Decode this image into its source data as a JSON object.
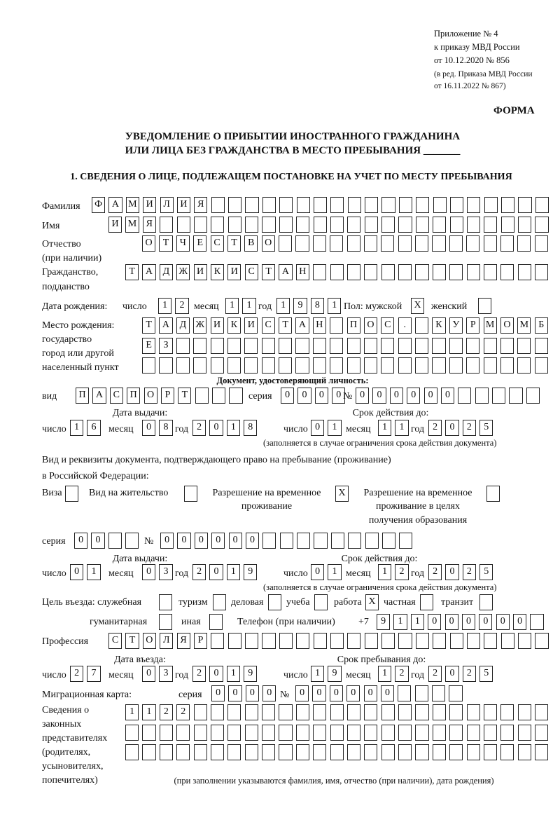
{
  "header": {
    "line1": "Приложение № 4",
    "line2": "к приказу МВД России",
    "line3": "от 10.12.2020 № 856",
    "line4": "(в ред. Приказа МВД России",
    "line5": "от 16.11.2022 № 867)",
    "form": "ФОРМА",
    "title1": "УВЕДОМЛЕНИЕ О ПРИБЫТИИ ИНОСТРАННОГО ГРАЖДАНИНА",
    "title2": "ИЛИ ЛИЦА БЕЗ ГРАЖДАНСТВА В МЕСТО ПРЕБЫВАНИЯ _______",
    "section1": "1. СВЕДЕНИЯ О ЛИЦЕ, ПОДЛЕЖАЩЕМ ПОСТАНОВКЕ НА УЧЕТ ПО МЕСТУ ПРЕБЫВАНИЯ"
  },
  "labels": {
    "surname": "Фамилия",
    "name": "Имя",
    "patronymic1": "Отчество",
    "patronymic2": "(при наличии)",
    "citizenship1": "Гражданство,",
    "citizenship2": "подданство",
    "birth_date": "Дата рождения:",
    "day": "число",
    "month": "месяц",
    "year": "год",
    "sex": "Пол: мужской",
    "female": "женский",
    "birthplace1": "Место рождения:",
    "birthplace2": "государство",
    "birthplace3": "город или другой",
    "birthplace4": "населенный пункт",
    "id_doc": "Документ, удостоверяющий личность:",
    "kind": "вид",
    "series": "серия",
    "number": "№",
    "issue_date": "Дата выдачи:",
    "valid_until": "Срок действия до:",
    "valid_note": "(заполняется в случае ограничения срока действия документа)",
    "right_doc1": "Вид и реквизиты документа, подтверждающего право на пребывание (проживание)",
    "right_doc2": "в Российской Федерации:",
    "visa": "Виза",
    "residence": "Вид на жительство",
    "trp1": "Разрешение на временное",
    "trp2": "проживание",
    "trp_edu1": "Разрешение на временное",
    "trp_edu2": "проживание в целях",
    "trp_edu3": "получения образования",
    "purpose": "Цель въезда: служебная",
    "tourism": "туризм",
    "business": "деловая",
    "study": "учеба",
    "work": "работа",
    "private": "частная",
    "transit": "транзит",
    "humanitarian": "гуманитарная",
    "other": "иная",
    "phone": "Телефон (при наличии)",
    "phone_prefix": "+7",
    "profession": "Профессия",
    "entry_date": "Дата въезда:",
    "stay_until": "Срок пребывания до:",
    "migration_card": "Миграционная карта:",
    "reps1": "Сведения о",
    "reps2": "законных",
    "reps3": "представителях",
    "reps4": "(родителях,",
    "reps5": "усыновителях,",
    "reps6": "попечителях)",
    "reps_note": "(при заполнении указываются фамилия, имя, отчество (при наличии), дата рождения)"
  },
  "person": {
    "surname": [
      "Ф",
      "А",
      "М",
      "И",
      "Л",
      "И",
      "Я",
      "",
      "",
      "",
      "",
      "",
      "",
      "",
      "",
      "",
      "",
      "",
      "",
      "",
      "",
      "",
      "",
      "",
      "",
      "",
      ""
    ],
    "name": [
      "И",
      "М",
      "Я",
      "",
      "",
      "",
      "",
      "",
      "",
      "",
      "",
      "",
      "",
      "",
      "",
      "",
      "",
      "",
      "",
      "",
      "",
      "",
      "",
      "",
      "",
      ""
    ],
    "patronymic": [
      "О",
      "Т",
      "Ч",
      "Е",
      "С",
      "Т",
      "В",
      "О",
      "",
      "",
      "",
      "",
      "",
      "",
      "",
      "",
      "",
      "",
      "",
      "",
      "",
      "",
      "",
      ""
    ],
    "citizenship": [
      "Т",
      "А",
      "Д",
      "Ж",
      "И",
      "К",
      "И",
      "С",
      "Т",
      "А",
      "Н",
      "",
      "",
      "",
      "",
      "",
      "",
      "",
      "",
      "",
      "",
      "",
      "",
      "",
      ""
    ],
    "birth_day": [
      "1",
      "2"
    ],
    "birth_month": [
      "1",
      "1"
    ],
    "birth_year": [
      "1",
      "9",
      "8",
      "1"
    ],
    "male": [
      "X"
    ],
    "female": [
      ""
    ],
    "birthplace1": [
      "Т",
      "А",
      "Д",
      "Ж",
      "И",
      "К",
      "И",
      "С",
      "Т",
      "А",
      "Н",
      "",
      "П",
      "О",
      "С",
      ".",
      "",
      "К",
      "У",
      "Р",
      "М",
      "О",
      "М",
      "Б"
    ],
    "birthplace2": [
      "Е",
      "З",
      "",
      "",
      "",
      "",
      "",
      "",
      "",
      "",
      "",
      "",
      "",
      "",
      "",
      "",
      "",
      "",
      "",
      "",
      "",
      "",
      "",
      ""
    ],
    "birthplace3": [
      "",
      "",
      "",
      "",
      "",
      "",
      "",
      "",
      "",
      "",
      "",
      "",
      "",
      "",
      "",
      "",
      "",
      "",
      "",
      "",
      "",
      "",
      "",
      ""
    ]
  },
  "id_doc": {
    "kind": [
      "П",
      "А",
      "С",
      "П",
      "О",
      "Р",
      "Т",
      "",
      "",
      ""
    ],
    "series": [
      "0",
      "0",
      "0",
      "0"
    ],
    "number": [
      "0",
      "0",
      "0",
      "0",
      "0",
      "0",
      "",
      "",
      "",
      "",
      ""
    ],
    "issue_day": [
      "1",
      "6"
    ],
    "issue_month": [
      "0",
      "8"
    ],
    "issue_year": [
      "2",
      "0",
      "1",
      "8"
    ],
    "valid_day": [
      "0",
      "1"
    ],
    "valid_month": [
      "1",
      "1"
    ],
    "valid_year": [
      "2",
      "0",
      "2",
      "5"
    ]
  },
  "right_doc": {
    "visa": [
      ""
    ],
    "residence": [
      ""
    ],
    "trp": [
      "X"
    ],
    "trp_edu": [
      ""
    ],
    "series": [
      "0",
      "0",
      "",
      ""
    ],
    "number": [
      "0",
      "0",
      "0",
      "0",
      "0",
      "0",
      "",
      "",
      "",
      "",
      "",
      "",
      "",
      "",
      ""
    ],
    "issue_day": [
      "0",
      "1"
    ],
    "issue_month": [
      "0",
      "3"
    ],
    "issue_year": [
      "2",
      "0",
      "1",
      "9"
    ],
    "valid_day": [
      "0",
      "1"
    ],
    "valid_month": [
      "1",
      "2"
    ],
    "valid_year": [
      "2",
      "0",
      "2",
      "5"
    ]
  },
  "purpose": {
    "official": [
      ""
    ],
    "tourism": [
      ""
    ],
    "business": [
      ""
    ],
    "study": [
      ""
    ],
    "work": [
      "X"
    ],
    "private": [
      ""
    ],
    "transit": [
      ""
    ],
    "humanitarian": [
      ""
    ],
    "other": [
      ""
    ]
  },
  "phone": [
    "9",
    "1",
    "1",
    "0",
    "0",
    "0",
    "0",
    "0",
    "0",
    ""
  ],
  "profession": [
    "С",
    "Т",
    "О",
    "Л",
    "Я",
    "Р",
    "",
    "",
    "",
    "",
    "",
    "",
    "",
    "",
    "",
    "",
    "",
    "",
    "",
    "",
    "",
    "",
    "",
    "",
    "",
    ""
  ],
  "entry": {
    "day": [
      "2",
      "7"
    ],
    "month": [
      "0",
      "3"
    ],
    "year": [
      "2",
      "0",
      "1",
      "9"
    ],
    "until_day": [
      "1",
      "9"
    ],
    "until_month": [
      "1",
      "2"
    ],
    "until_year": [
      "2",
      "0",
      "2",
      "5"
    ]
  },
  "migration_card": {
    "series": [
      "0",
      "0",
      "0",
      "0"
    ],
    "number": [
      "0",
      "0",
      "0",
      "0",
      "0",
      "0",
      "",
      "",
      "",
      ""
    ]
  },
  "reps": {
    "row1": [
      "1",
      "1",
      "2",
      "2",
      "",
      "",
      "",
      "",
      "",
      "",
      "",
      "",
      "",
      "",
      "",
      "",
      "",
      "",
      "",
      "",
      "",
      "",
      "",
      "",
      ""
    ],
    "row2": [
      "",
      "",
      "",
      "",
      "",
      "",
      "",
      "",
      "",
      "",
      "",
      "",
      "",
      "",
      "",
      "",
      "",
      "",
      "",
      "",
      "",
      "",
      "",
      "",
      ""
    ],
    "row3": [
      "",
      "",
      "",
      "",
      "",
      "",
      "",
      "",
      "",
      "",
      "",
      "",
      "",
      "",
      "",
      "",
      "",
      "",
      "",
      "",
      "",
      "",
      "",
      "",
      ""
    ]
  }
}
